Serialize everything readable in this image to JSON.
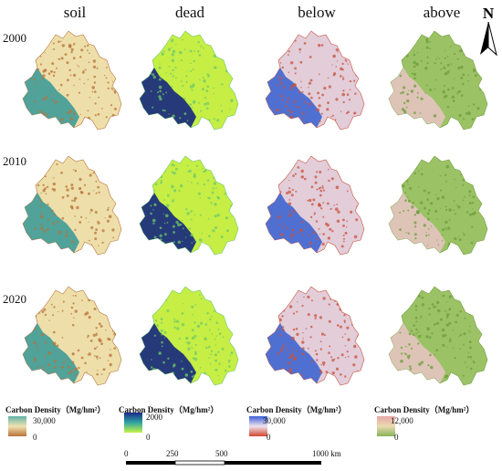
{
  "columns": [
    {
      "id": "soil",
      "label": "soil"
    },
    {
      "id": "dead",
      "label": "dead"
    },
    {
      "id": "below",
      "label": "below"
    },
    {
      "id": "above",
      "label": "above"
    }
  ],
  "years": [
    "2000",
    "2010",
    "2020"
  ],
  "north_label": "N",
  "legends": [
    {
      "title": "Carbon Density（Mg/hm²）",
      "max": "30,000",
      "min": "0",
      "colors": [
        "#5fb3a8",
        "#f1e3b0",
        "#b8733a"
      ]
    },
    {
      "title": "Carbon Density（Mg/hm²）",
      "max": "2000",
      "min": "0",
      "colors": [
        "#1a2a8c",
        "#2fa6a0",
        "#c8f24a"
      ]
    },
    {
      "title": "Carbon Density（Mg/hm²）",
      "max": "30,000",
      "min": "0",
      "colors": [
        "#3a5ed6",
        "#eee3ef",
        "#d2442e"
      ]
    },
    {
      "title": "Carbon Density（Mg/hm²）",
      "max": "12,000",
      "min": "0",
      "colors": [
        "#e7a6a8",
        "#eadbb0",
        "#86b256"
      ]
    }
  ],
  "scale_bar": {
    "labels": [
      "0",
      "250",
      "500",
      "1000 km"
    ]
  },
  "palettes": {
    "soil": {
      "base": "#eedfaa",
      "west": "#3f9b97",
      "dots": "#b8733a"
    },
    "dead": {
      "base": "#c6ee45",
      "west": "#14267e",
      "dots": "#6fc86a"
    },
    "below": {
      "base": "#e2cdd9",
      "west": "#4066cf",
      "dots": "#c8513c"
    },
    "above": {
      "base": "#9cc266",
      "west": "#e6c4c0",
      "dots": "#6e9e3c"
    }
  }
}
